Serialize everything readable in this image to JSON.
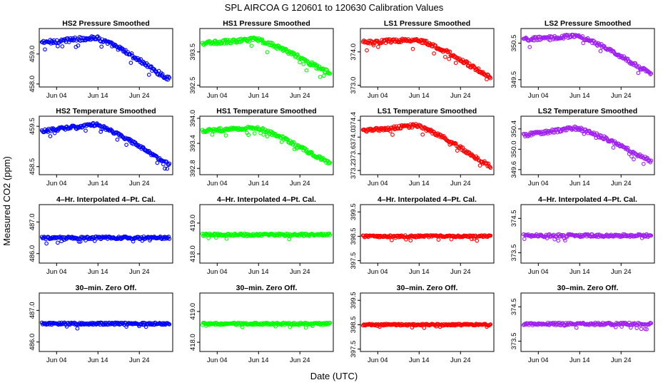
{
  "title": "SPL    AIRCOA G   120601 to 120630   Calibration Values",
  "xlabel": "Date (UTC)",
  "ylabel": "Measured CO2 (ppm)",
  "x_ticks": [
    "Jun 04",
    "Jun 14",
    "Jun 24"
  ],
  "colors": {
    "blue": "#0000ff",
    "green": "#00ff00",
    "red": "#ff0000",
    "purple": "#a020f0"
  },
  "chart_data": [
    {
      "type": "scatter",
      "title": "HS2 Pressure Smoothed",
      "color": "#0000ff",
      "yticks": [
        "458.0",
        "459.0"
      ],
      "ytick_values": [
        458.0,
        459.0
      ],
      "ylim": [
        457.9,
        459.85
      ],
      "shape": "trend",
      "start": 459.38,
      "mid": 459.55,
      "end": 458.23,
      "noise": 0.07
    },
    {
      "type": "scatter",
      "title": "HS1 Pressure Smoothed",
      "color": "#00ff00",
      "yticks": [
        "392.5",
        "393.5"
      ],
      "ytick_values": [
        392.5,
        393.5
      ],
      "ylim": [
        392.45,
        394.2
      ],
      "shape": "trend",
      "start": 393.75,
      "mid": 393.88,
      "end": 392.92,
      "noise": 0.06
    },
    {
      "type": "scatter",
      "title": "LS1 Pressure Smoothed",
      "color": "#ff0000",
      "yticks": [
        "373.0",
        "374.0"
      ],
      "ytick_values": [
        373.0,
        374.0
      ],
      "ylim": [
        372.95,
        374.7
      ],
      "shape": "trend",
      "start": 374.28,
      "mid": 374.38,
      "end": 373.32,
      "noise": 0.06
    },
    {
      "type": "scatter",
      "title": "LS2 Pressure Smoothed",
      "color": "#a020f0",
      "yticks": [
        "349.5",
        "350.5"
      ],
      "ytick_values": [
        349.5,
        350.5
      ],
      "ylim": [
        349.3,
        350.9
      ],
      "shape": "trend",
      "start": 350.6,
      "mid": 350.7,
      "end": 349.72,
      "noise": 0.05
    },
    {
      "type": "scatter",
      "title": "HS2 Temperature Smoothed",
      "color": "#0000ff",
      "yticks": [
        "458.5",
        "459.5"
      ],
      "ytick_values": [
        458.5,
        459.5
      ],
      "ylim": [
        458.3,
        459.75
      ],
      "shape": "trend",
      "start": 459.38,
      "mid": 459.55,
      "end": 458.6,
      "noise": 0.04
    },
    {
      "type": "scatter",
      "title": "HS1 Temperature Smoothed",
      "color": "#00ff00",
      "yticks": [
        "392.8",
        "393.4",
        "394.0"
      ],
      "ytick_values": [
        392.8,
        393.4,
        394.0
      ],
      "ylim": [
        392.65,
        394.05
      ],
      "shape": "trend",
      "start": 393.7,
      "mid": 393.78,
      "end": 392.97,
      "noise": 0.04
    },
    {
      "type": "scatter",
      "title": "LS1 Temperature Smoothed",
      "color": "#ff0000",
      "yticks": [
        "373.2",
        "373.6",
        "374.0",
        "374.4"
      ],
      "ytick_values": [
        373.2,
        373.6,
        374.0,
        374.4
      ],
      "ylim": [
        373.1,
        374.5
      ],
      "shape": "trend",
      "start": 374.15,
      "mid": 374.28,
      "end": 373.35,
      "noise": 0.04
    },
    {
      "type": "scatter",
      "title": "LS2 Temperature Smoothed",
      "color": "#a020f0",
      "yticks": [
        "349.6",
        "350.0",
        "350.4"
      ],
      "ytick_values": [
        349.6,
        350.0,
        350.4
      ],
      "ylim": [
        349.5,
        350.65
      ],
      "shape": "trend",
      "start": 350.28,
      "mid": 350.42,
      "end": 349.8,
      "noise": 0.035
    },
    {
      "type": "scatter",
      "title": "4–Hr. Interpolated 4–Pt. Cal.",
      "color": "#0000ff",
      "yticks": [
        "486.0",
        "487.0"
      ],
      "ytick_values": [
        486.0,
        487.0
      ],
      "ylim": [
        485.7,
        487.55
      ],
      "shape": "flat",
      "start": 486.5,
      "mid": 486.5,
      "end": 486.5,
      "noise": 0.04
    },
    {
      "type": "scatter",
      "title": "4–Hr. Interpolated 4–Pt. Cal.",
      "color": "#00ff00",
      "yticks": [
        "418.0",
        "419.0"
      ],
      "ytick_values": [
        418.0,
        419.0
      ],
      "ylim": [
        417.7,
        419.6
      ],
      "shape": "flat",
      "start": 418.62,
      "mid": 418.62,
      "end": 418.62,
      "noise": 0.04
    },
    {
      "type": "scatter",
      "title": "4–Hr. Interpolated 4–Pt. Cal.",
      "color": "#ff0000",
      "yticks": [
        "397.5",
        "398.5",
        "399.5"
      ],
      "ytick_values": [
        397.5,
        398.5,
        399.5
      ],
      "ylim": [
        397.4,
        399.8
      ],
      "shape": "flat",
      "start": 398.5,
      "mid": 398.5,
      "end": 398.5,
      "noise": 0.04
    },
    {
      "type": "scatter",
      "title": "4–Hr. Interpolated 4–Pt. Cal.",
      "color": "#a020f0",
      "yticks": [
        "373.5",
        "374.5"
      ],
      "ytick_values": [
        373.5,
        374.5
      ],
      "ylim": [
        373.2,
        374.9
      ],
      "shape": "flat",
      "start": 374.0,
      "mid": 374.0,
      "end": 374.0,
      "noise": 0.04
    },
    {
      "type": "scatter",
      "title": "30–min. Zero Off.",
      "color": "#0000ff",
      "yticks": [
        "486.0",
        "487.0"
      ],
      "ytick_values": [
        486.0,
        487.0
      ],
      "ylim": [
        485.7,
        487.55
      ],
      "shape": "flat",
      "start": 486.58,
      "mid": 486.58,
      "end": 486.58,
      "noise": 0.035
    },
    {
      "type": "scatter",
      "title": "30–min. Zero Off.",
      "color": "#00ff00",
      "yticks": [
        "418.0",
        "419.0"
      ],
      "ytick_values": [
        418.0,
        419.0
      ],
      "ylim": [
        417.7,
        419.6
      ],
      "shape": "flat",
      "start": 418.6,
      "mid": 418.6,
      "end": 418.6,
      "noise": 0.035
    },
    {
      "type": "scatter",
      "title": "30–min. Zero Off.",
      "color": "#ff0000",
      "yticks": [
        "397.5",
        "398.5",
        "399.5"
      ],
      "ytick_values": [
        397.5,
        398.5,
        399.5
      ],
      "ylim": [
        397.4,
        399.8
      ],
      "shape": "flat",
      "start": 398.5,
      "mid": 398.5,
      "end": 398.5,
      "noise": 0.035
    },
    {
      "type": "scatter",
      "title": "30–min. Zero Off.",
      "color": "#a020f0",
      "yticks": [
        "373.5",
        "374.5"
      ],
      "ytick_values": [
        373.5,
        374.5
      ],
      "ylim": [
        373.2,
        374.9
      ],
      "shape": "flat",
      "start": 374.0,
      "mid": 374.0,
      "end": 374.0,
      "noise": 0.035
    }
  ]
}
